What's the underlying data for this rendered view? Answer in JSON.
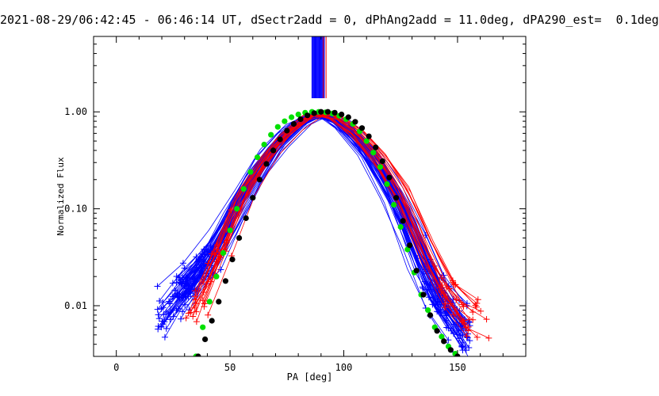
{
  "chart_data": {
    "type": "line",
    "title": "2021-08-29/06:42:45 - 06:46:14 UT, dSectr2add = 0, dPhAng2add = 11.0deg, dPA290_est=  0.1deg",
    "xlabel": "PA [deg]",
    "ylabel": "Normalized Flux",
    "xlim": [
      -10,
      180
    ],
    "ylim": [
      0.003,
      6
    ],
    "yscale": "log",
    "grid": false,
    "x_ticks": [
      0,
      50,
      100,
      150
    ],
    "x_tick_labels": [
      "0",
      "50",
      "100",
      "150"
    ],
    "y_ticks": [
      0.01,
      0.1,
      1.0
    ],
    "y_tick_labels": [
      "0.01",
      "0.10",
      "1.00"
    ],
    "colors": {
      "blue_series": "#0000ff",
      "red_series": "#ff0000",
      "green_fit": "#00e000",
      "black_fit": "#000000",
      "axes": "#000000"
    },
    "series": [
      {
        "color": "blue_series",
        "marker": "plus",
        "description_curves": 60,
        "left_peak_points": [
          [
            18,
            0.006
          ],
          [
            22,
            0.0085
          ],
          [
            26,
            0.011
          ],
          [
            30,
            0.015
          ],
          [
            35,
            0.02
          ],
          [
            40,
            0.028
          ],
          [
            45,
            0.045
          ],
          [
            55,
            0.13
          ],
          [
            65,
            0.32
          ],
          [
            75,
            0.62
          ],
          [
            85,
            0.92
          ],
          [
            90,
            1.0
          ]
        ],
        "right_points": [
          [
            90,
            1.0
          ],
          [
            98,
            0.78
          ],
          [
            105,
            0.55
          ],
          [
            112,
            0.36
          ],
          [
            120,
            0.17
          ],
          [
            128,
            0.07
          ],
          [
            135,
            0.025
          ],
          [
            142,
            0.011
          ],
          [
            150,
            0.007
          ],
          [
            155,
            0.004
          ]
        ]
      },
      {
        "color": "red_series",
        "marker": "plus",
        "description_curves": 18,
        "left_peak_points": [
          [
            30,
            0.006
          ],
          [
            40,
            0.02
          ],
          [
            55,
            0.14
          ],
          [
            70,
            0.5
          ],
          [
            85,
            0.94
          ],
          [
            92,
            1.0
          ]
        ],
        "right_points": [
          [
            92,
            1.0
          ],
          [
            100,
            0.8
          ],
          [
            110,
            0.5
          ],
          [
            120,
            0.26
          ],
          [
            128,
            0.12
          ],
          [
            135,
            0.05
          ],
          [
            142,
            0.022
          ],
          [
            150,
            0.011
          ],
          [
            158,
            0.0075
          ],
          [
            162,
            0.0065
          ]
        ]
      },
      {
        "color": "green_fit",
        "marker": "circle",
        "x": [
          35,
          38,
          41,
          44,
          47,
          50,
          53,
          56,
          59,
          62,
          65,
          68,
          71,
          74,
          77,
          80,
          83,
          86,
          89,
          92,
          95,
          98,
          101,
          104,
          107,
          110,
          113,
          116,
          119,
          122,
          125,
          128,
          131,
          134,
          137,
          140,
          143,
          146,
          149
        ],
        "y": [
          0.003,
          0.006,
          0.011,
          0.02,
          0.035,
          0.06,
          0.1,
          0.16,
          0.24,
          0.34,
          0.46,
          0.58,
          0.7,
          0.8,
          0.88,
          0.94,
          0.98,
          1.0,
          1.0,
          0.99,
          0.96,
          0.91,
          0.84,
          0.75,
          0.63,
          0.5,
          0.38,
          0.27,
          0.18,
          0.11,
          0.065,
          0.038,
          0.022,
          0.013,
          0.009,
          0.006,
          0.0048,
          0.0038,
          0.0032
        ]
      },
      {
        "color": "black_fit",
        "marker": "circle",
        "x": [
          36,
          39,
          42,
          45,
          48,
          51,
          54,
          57,
          60,
          63,
          66,
          69,
          72,
          75,
          78,
          81,
          84,
          87,
          90,
          93,
          96,
          99,
          102,
          105,
          108,
          111,
          114,
          117,
          120,
          123,
          126,
          129,
          132,
          135,
          138,
          141,
          144,
          147,
          150
        ],
        "y": [
          0.003,
          0.0045,
          0.007,
          0.011,
          0.018,
          0.03,
          0.05,
          0.08,
          0.13,
          0.2,
          0.29,
          0.4,
          0.52,
          0.64,
          0.75,
          0.84,
          0.92,
          0.97,
          1.0,
          1.0,
          0.98,
          0.94,
          0.88,
          0.79,
          0.68,
          0.56,
          0.43,
          0.31,
          0.21,
          0.13,
          0.075,
          0.042,
          0.023,
          0.013,
          0.008,
          0.0055,
          0.0043,
          0.0035,
          0.003
        ]
      }
    ]
  }
}
